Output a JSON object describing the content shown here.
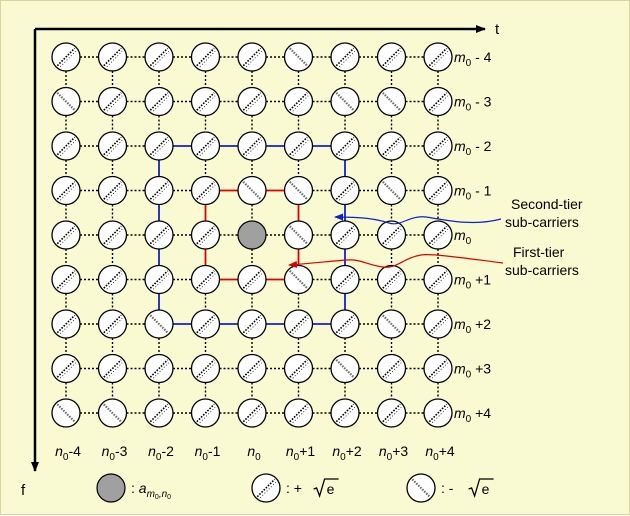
{
  "axes": {
    "time_label": "t",
    "freq_label": "f"
  },
  "grid": {
    "cols": 9,
    "rows": 9,
    "center": [
      4,
      4
    ],
    "col_labels": [
      {
        "pre": "n",
        "sub": "0",
        "post": "-4"
      },
      {
        "pre": "n",
        "sub": "0",
        "post": "-3"
      },
      {
        "pre": "n",
        "sub": "0",
        "post": "-2"
      },
      {
        "pre": "n",
        "sub": "0",
        "post": "-1"
      },
      {
        "pre": "n",
        "sub": "0",
        "post": ""
      },
      {
        "pre": "n",
        "sub": "0",
        "post": "+1"
      },
      {
        "pre": "n",
        "sub": "0",
        "post": "+2"
      },
      {
        "pre": "n",
        "sub": "0",
        "post": "+3"
      },
      {
        "pre": "n",
        "sub": "0",
        "post": "+4"
      }
    ],
    "row_labels": [
      {
        "pre": "m",
        "sub": "0",
        "post": " - 4"
      },
      {
        "pre": "m",
        "sub": "0",
        "post": " - 3"
      },
      {
        "pre": "m",
        "sub": "0",
        "post": " - 2"
      },
      {
        "pre": "m",
        "sub": "0",
        "post": " - 1"
      },
      {
        "pre": "m",
        "sub": "0",
        "post": ""
      },
      {
        "pre": "m",
        "sub": "0",
        "post": " +1"
      },
      {
        "pre": "m",
        "sub": "0",
        "post": " +2"
      },
      {
        "pre": "m",
        "sub": "0",
        "post": " +3"
      },
      {
        "pre": "m",
        "sub": "0",
        "post": " +4"
      }
    ],
    "symbols": [
      [
        "+",
        "+",
        "+",
        "+",
        "+",
        "-",
        "+",
        "+",
        "+"
      ],
      [
        "-",
        "+",
        "+",
        "+",
        "+",
        "+",
        "-",
        "-",
        "+"
      ],
      [
        "+",
        "+",
        "+",
        "+",
        "+",
        "+",
        "+",
        "+",
        "+"
      ],
      [
        "+",
        "+",
        "+",
        "+",
        "-",
        "-",
        "+",
        "-",
        "+"
      ],
      [
        "+",
        "+",
        "+",
        "+",
        "c",
        "-",
        "+",
        "+",
        "+"
      ],
      [
        "+",
        "+",
        "+",
        "+",
        "+",
        "-",
        "+",
        "+",
        "+"
      ],
      [
        "+",
        "+",
        "-",
        "+",
        "+",
        "+",
        "+",
        "-",
        "+"
      ],
      [
        "+",
        "+",
        "+",
        "+",
        "+",
        "+",
        "-",
        "+",
        "+"
      ],
      [
        "-",
        "-",
        "+",
        "+",
        "+",
        "+",
        "+",
        "+",
        "+"
      ]
    ],
    "tiers": [
      {
        "name": "first-tier",
        "ring": 1,
        "color": "#e00000"
      },
      {
        "name": "second-tier",
        "ring": 2,
        "color": "#1020d0"
      }
    ],
    "outer_link_color": "#000000"
  },
  "annotations": {
    "second_tier": [
      "Second-tier",
      "sub-carriers"
    ],
    "first_tier": [
      "First-tier",
      "sub-carriers"
    ]
  },
  "legend": {
    "data_symbol": {
      "pre": "a",
      "sub": "m",
      "subsub": "0",
      "sub2": ",n",
      "sub2sub": "0"
    },
    "plus_text": ": + ",
    "minus_text": ": - ",
    "sqrt_arg": "e",
    "colon": ":"
  },
  "colors": {
    "background": "#fafad2",
    "data_fill": "#a0a0a0",
    "plus_stroke": "#000000",
    "minus_stroke": "#707070"
  }
}
